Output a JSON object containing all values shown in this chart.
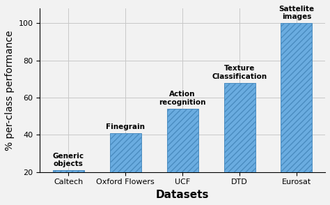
{
  "categories": [
    "Caltech",
    "Oxford Flowers",
    "UCF",
    "DTD",
    "Eurosat"
  ],
  "values": [
    21,
    41,
    54,
    68,
    100
  ],
  "annotations": [
    "Generic\nobjects",
    "Finegrain",
    "Action\nrecognition",
    "Texture\nClassification",
    "Sattelite\nimages"
  ],
  "bar_color": "#6aace0",
  "bar_edgecolor": "#4a8cc0",
  "ylabel": "% per-class performance",
  "xlabel": "Datasets",
  "ylim": [
    20,
    108
  ],
  "yticks": [
    20,
    40,
    60,
    80,
    100
  ],
  "grid_color": "#c8c8c8",
  "background_color": "#f2f2f2",
  "hatch": "////",
  "annotation_fontsize": 7.5,
  "label_fontsize": 10,
  "tick_fontsize": 8,
  "xlabel_fontsize": 11
}
